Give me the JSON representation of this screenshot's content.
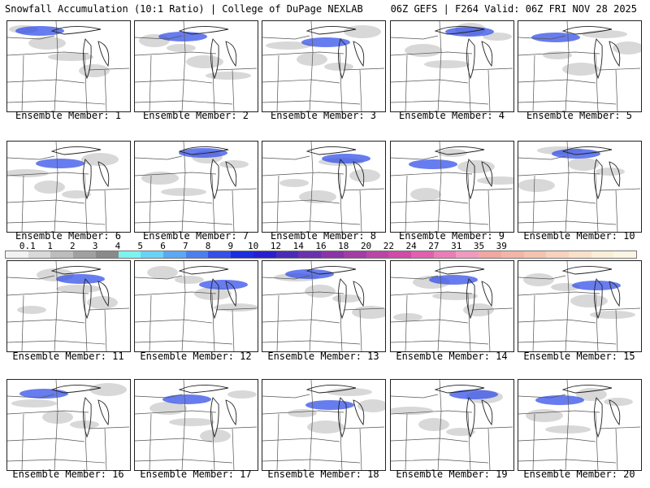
{
  "header": {
    "title": "Snowfall Accumulation (10:1 Ratio) | College of DuPage NEXLAB",
    "run_info": "06Z GEFS | F264 Valid: 06Z FRI NOV 28 2025"
  },
  "members": [
    {
      "label": "Ensemble Member: 1"
    },
    {
      "label": "Ensemble Member: 2"
    },
    {
      "label": "Ensemble Member: 3"
    },
    {
      "label": "Ensemble Member: 4"
    },
    {
      "label": "Ensemble Member: 5"
    },
    {
      "label": "Ensemble Member: 6"
    },
    {
      "label": "Ensemble Member: 7"
    },
    {
      "label": "Ensemble Member: 8"
    },
    {
      "label": "Ensemble Member: 9"
    },
    {
      "label": "Ensemble Member: 10"
    },
    {
      "label": "Ensemble Member: 11"
    },
    {
      "label": "Ensemble Member: 12"
    },
    {
      "label": "Ensemble Member: 13"
    },
    {
      "label": "Ensemble Member: 14"
    },
    {
      "label": "Ensemble Member: 15"
    },
    {
      "label": "Ensemble Member: 16"
    },
    {
      "label": "Ensemble Member: 17"
    },
    {
      "label": "Ensemble Member: 18"
    },
    {
      "label": "Ensemble Member: 19"
    },
    {
      "label": "Ensemble Member: 20"
    }
  ],
  "color_scale": {
    "labels": [
      "0.1",
      "1",
      "2",
      "3",
      "4",
      "5",
      "6",
      "7",
      "8",
      "9",
      "10",
      "12",
      "14",
      "16",
      "18",
      "20",
      "22",
      "24",
      "27",
      "31",
      "35",
      "39"
    ],
    "colors": [
      "#f2f2f2",
      "#d9d9d9",
      "#bdbdbd",
      "#a0a0a0",
      "#8a8a8a",
      "#7df3f0",
      "#6bd2f7",
      "#5aa9f2",
      "#4b7ff0",
      "#3450e8",
      "#1d2de0",
      "#2a1fd0",
      "#4a2bb8",
      "#6a30b0",
      "#8a34a8",
      "#a33ca4",
      "#bb45a6",
      "#d04aa8",
      "#e060b0",
      "#ea7db8",
      "#f09ac0",
      "#f0a8a0",
      "#f2b5a6",
      "#f5c3b0",
      "#f7d2bc",
      "#f9e0c8",
      "#fbeed6",
      "#fdf5e4"
    ]
  }
}
